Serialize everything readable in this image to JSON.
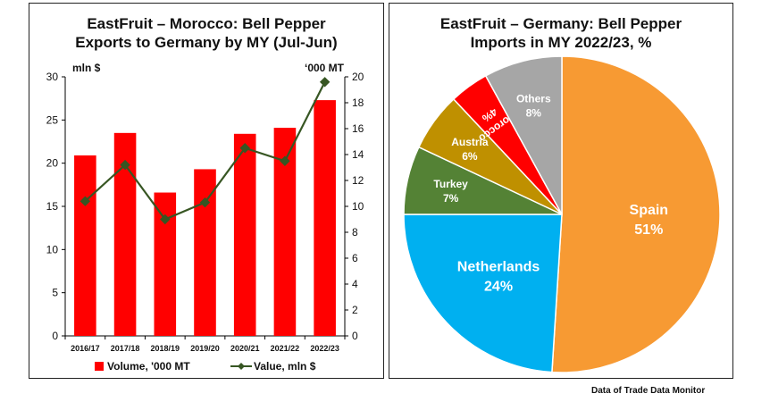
{
  "source_note": "Data of Trade Data Monitor",
  "chart_data": [
    {
      "type": "bar",
      "title": "EastFruit – Morocco: Bell Pepper Exports to Germany by MY (Jul-Jun)",
      "title_lines": [
        "EastFruit – Morocco: Bell Pepper",
        "Exports to Germany by MY (Jul-Jun)"
      ],
      "categories": [
        "2016/17",
        "2017/18",
        "2018/19",
        "2019/20",
        "2020/21",
        "2021/22",
        "2022/23"
      ],
      "series": [
        {
          "name": "Volume, '000 MT",
          "kind": "bar",
          "axis": "left",
          "color": "#ff0000",
          "values": [
            20.9,
            23.5,
            16.6,
            19.3,
            23.4,
            24.1,
            27.3
          ]
        },
        {
          "name": "Value, mln $",
          "kind": "line",
          "axis": "right",
          "color": "#375623",
          "values": [
            10.4,
            13.2,
            9.0,
            10.3,
            14.5,
            13.5,
            19.6
          ]
        }
      ],
      "y_left": {
        "label": "mln $",
        "min": 0,
        "max": 30,
        "step": 5
      },
      "y_right": {
        "label": "‘000 MT",
        "min": 0,
        "max": 20,
        "step": 2
      },
      "legend_position": "bottom",
      "grid": false
    },
    {
      "type": "pie",
      "title": "EastFruit – Germany: Bell Pepper Imports in MY 2022/23, %",
      "title_lines": [
        "EastFruit – Germany: Bell Pepper",
        "Imports in MY 2022/23, %"
      ],
      "slices": [
        {
          "label": "Spain",
          "value": 51,
          "pct_label": "51%",
          "color": "#f79a33",
          "text_color": "#ffffff"
        },
        {
          "label": "Netherlands",
          "value": 24,
          "pct_label": "24%",
          "color": "#00b0f0",
          "text_color": "#ffffff"
        },
        {
          "label": "Turkey",
          "value": 7,
          "pct_label": "7%",
          "color": "#548235",
          "text_color": "#ffffff"
        },
        {
          "label": "Austria",
          "value": 6,
          "pct_label": "6%",
          "color": "#bf9000",
          "text_color": "#ffffff"
        },
        {
          "label": "Morocco",
          "value": 4,
          "pct_label": "4%",
          "color": "#ff0000",
          "text_color": "#ffffff"
        },
        {
          "label": "Others",
          "value": 8,
          "pct_label": "8%",
          "color": "#a6a6a6",
          "text_color": "#ffffff"
        }
      ]
    }
  ]
}
